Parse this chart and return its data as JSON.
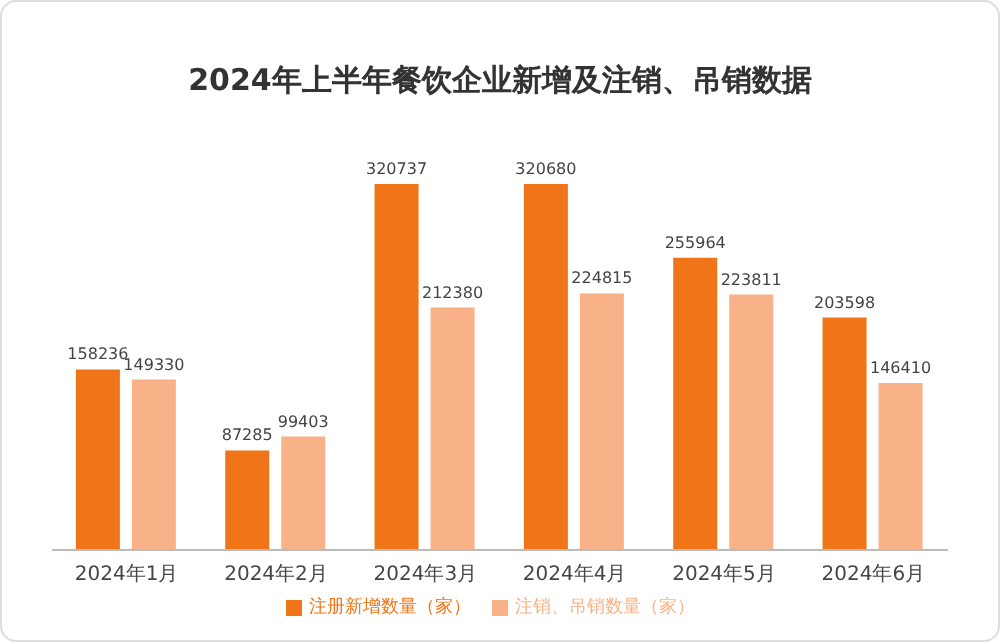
{
  "chart_data": {
    "type": "bar",
    "title": "2024年上半年餐饮企业新增及注销、吊销数据",
    "categories": [
      "2024年1月",
      "2024年2月",
      "2024年3月",
      "2024年4月",
      "2024年5月",
      "2024年6月"
    ],
    "series": [
      {
        "name": "注册新增数量（家）",
        "color": "#f07518",
        "values": [
          158236,
          87285,
          320737,
          320680,
          255964,
          203598
        ]
      },
      {
        "name": "注销、吊销数量（家）",
        "color": "#f9b287",
        "values": [
          149330,
          99403,
          212380,
          224815,
          223811,
          146410
        ]
      }
    ],
    "data_labels": true,
    "tick_labels": "x",
    "grid": false,
    "legend": "bottom"
  }
}
